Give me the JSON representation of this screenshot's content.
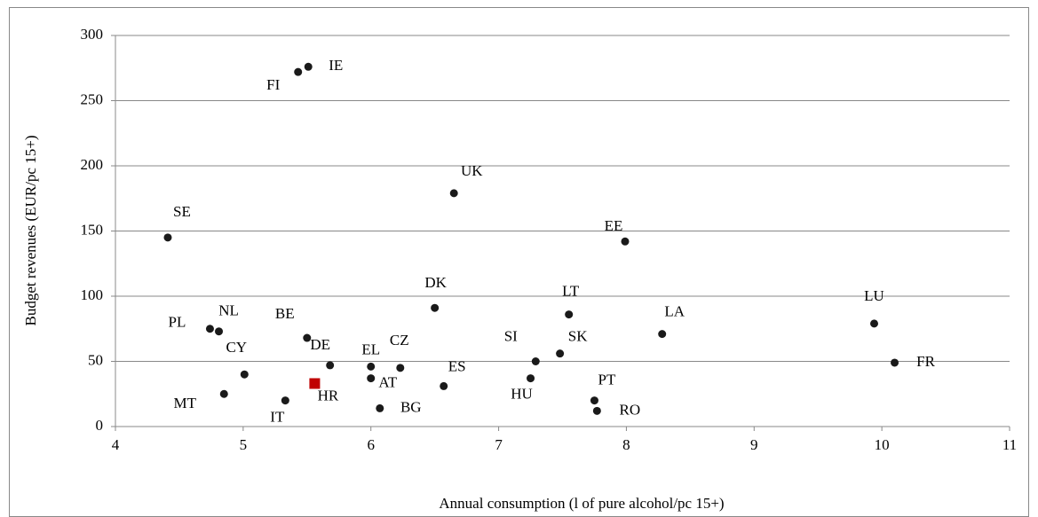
{
  "chart_data": {
    "type": "scatter",
    "x_label": "Annual consumption (l of pure alcohol/pc 15+)",
    "y_label": "Budget revenues (EUR/pc 15+)",
    "xlim": [
      4,
      11
    ],
    "xticks": [
      4,
      5,
      6,
      7,
      8,
      9,
      10,
      11
    ],
    "ylim": [
      0,
      300
    ],
    "yticks": [
      0,
      50,
      100,
      150,
      200,
      250,
      300
    ],
    "grid": true,
    "series": [
      {
        "color": "#1a1a1a",
        "marker": "circle",
        "labels": [
          "FI",
          "IE",
          "UK",
          "SE",
          "EE",
          "DK",
          "LT",
          "LA",
          "LU",
          "FR",
          "PL",
          "NL",
          "BE",
          "CY",
          "DE",
          "EL",
          "CZ",
          "AT",
          "ES",
          "SI",
          "SK",
          "HU",
          "PT",
          "RO",
          "MT",
          "IT",
          "BG"
        ],
        "x": [
          5.43,
          5.51,
          6.65,
          4.41,
          7.99,
          6.5,
          7.55,
          8.28,
          9.94,
          10.1,
          4.74,
          4.81,
          5.5,
          5.01,
          5.68,
          6.0,
          6.23,
          6.0,
          6.57,
          7.29,
          7.48,
          7.25,
          7.75,
          7.77,
          4.85,
          5.33,
          6.07
        ],
        "values": [
          272,
          276,
          179,
          145,
          142,
          91,
          86,
          71,
          79,
          49,
          75,
          73,
          68,
          40,
          47,
          46,
          45,
          37,
          31,
          50,
          56,
          37,
          20,
          12,
          25,
          20,
          14
        ]
      },
      {
        "color": "#c00000",
        "marker": "square",
        "labels": [
          "HR"
        ],
        "x": [
          5.56
        ],
        "values": [
          33
        ]
      }
    ]
  }
}
